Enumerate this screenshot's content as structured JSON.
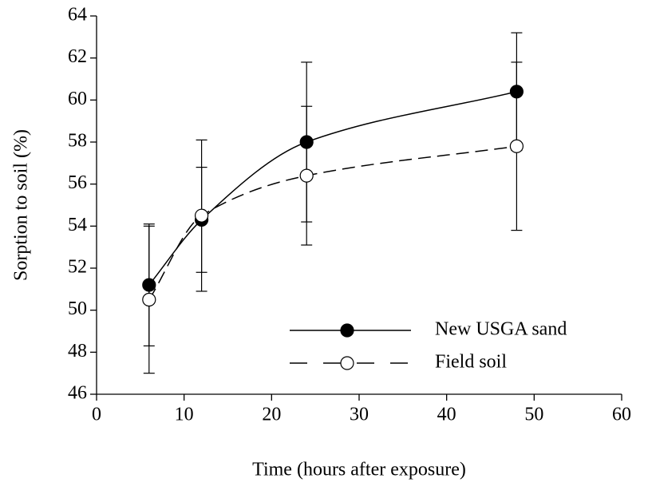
{
  "chart_data": {
    "type": "scatter",
    "x_label": "Time (hours after exposure)",
    "y_label": "Sorption to soil (%)",
    "x": [
      6,
      12,
      24,
      48
    ],
    "series": [
      {
        "name": "New USGA sand",
        "color": "#000000",
        "marker_fill": "#000000",
        "line_style": "solid",
        "values": [
          51.2,
          54.3,
          58.0,
          60.4
        ],
        "errors": [
          2.9,
          2.5,
          3.8,
          2.8
        ]
      },
      {
        "name": "Field soil",
        "color": "#000000",
        "marker_fill": "#ffffff",
        "line_style": "dashed",
        "values": [
          50.5,
          54.5,
          56.4,
          57.8
        ],
        "errors": [
          3.5,
          3.6,
          3.3,
          4.0
        ]
      }
    ],
    "xlim": [
      0,
      60
    ],
    "xticks": [
      0,
      10,
      20,
      30,
      40,
      50,
      60
    ],
    "ylim": [
      46,
      64
    ],
    "yticks": [
      46,
      48,
      50,
      52,
      54,
      56,
      58,
      60,
      62,
      64
    ],
    "legend": "lower right"
  }
}
